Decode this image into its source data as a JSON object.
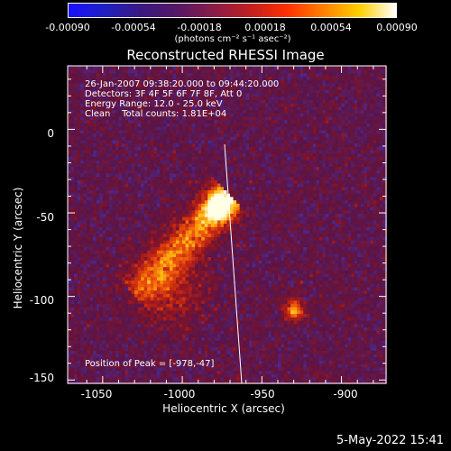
{
  "colorbar": {
    "ticks": [
      "-0.00090",
      "-0.00054",
      "-0.00018",
      "0.00018",
      "0.00054",
      "0.00090"
    ],
    "units": "(photons cm⁻² s⁻¹ asec⁻²)",
    "colors": [
      "#1a10ff",
      "#2020c0",
      "#3a1880",
      "#551865",
      "#8a1c48",
      "#c02020",
      "#ff3000",
      "#ff8000",
      "#ffd000",
      "#ffffff"
    ]
  },
  "title": "Reconstructed RHESSI Image",
  "info": {
    "line1": "26-Jan-2007 09:38:20.000 to 09:44:20.000",
    "line2": "Detectors: 3F 4F 5F 6F 7F 8F, Att 0",
    "line3": "Energy Range: 12.0 - 25.0 keV",
    "line4": "Clean    Total counts: 1.81E+04",
    "peak": "Position of Peak = [-978,-47]"
  },
  "axes": {
    "xlabel": "Heliocentric X (arcsec)",
    "ylabel": "Heliocentric Y (arcsec)",
    "xticks": [
      "-1050",
      "-1000",
      "-950",
      "-900"
    ],
    "yticks": [
      "0",
      "-50",
      "-100",
      "-150"
    ],
    "xrange": [
      -1072,
      -872
    ],
    "yrange": [
      -152,
      38
    ]
  },
  "peak_position": [
    -978,
    -47
  ],
  "footer": {
    "date": "5-May-2022 15:41"
  }
}
